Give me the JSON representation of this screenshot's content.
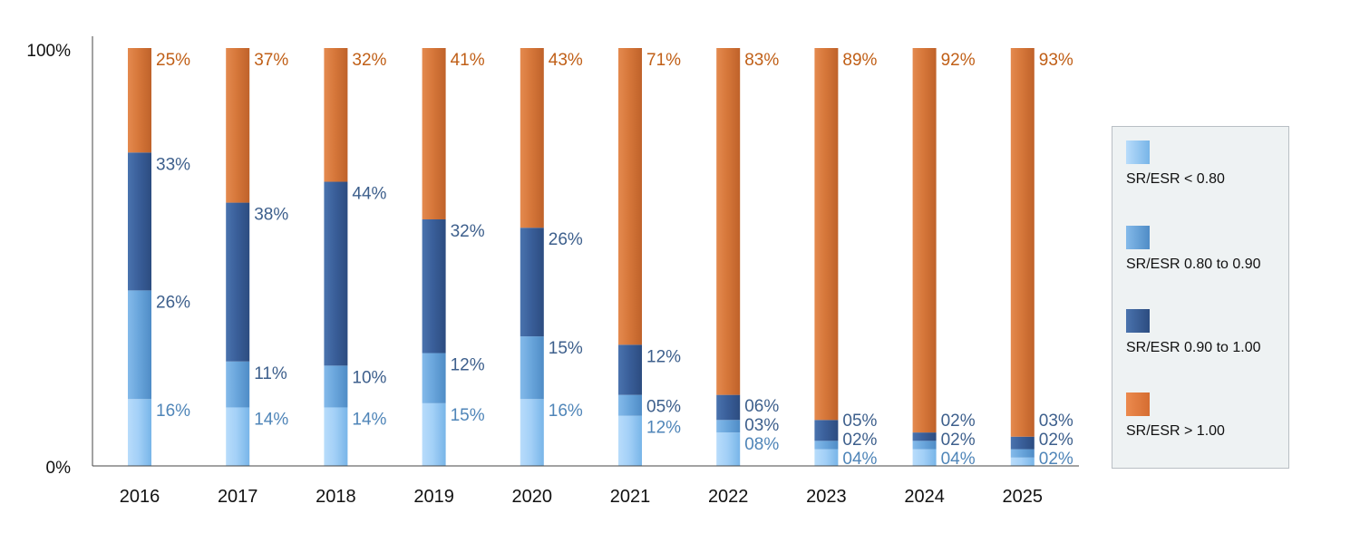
{
  "chart_data": {
    "type": "bar",
    "stacked": true,
    "title": "",
    "xlabel": "",
    "ylabel": "",
    "ylim": [
      0,
      100
    ],
    "yticks": [
      "0%",
      "100%"
    ],
    "categories": [
      "2016",
      "2017",
      "2018",
      "2019",
      "2020",
      "2021",
      "2022",
      "2023",
      "2024",
      "2025"
    ],
    "series": [
      {
        "name": "SR/ESR < 0.80",
        "color": "#9fcdf5",
        "values": [
          16,
          14,
          14,
          15,
          16,
          12,
          8,
          4,
          4,
          2
        ],
        "labels": [
          "16%",
          "14%",
          "14%",
          "15%",
          "16%",
          "12%",
          "08%",
          "04%",
          "04%",
          "02%"
        ]
      },
      {
        "name": "SR/ESR 0.80 to 0.90",
        "color": "#6aa7dc",
        "values": [
          26,
          11,
          10,
          12,
          15,
          5,
          3,
          2,
          2,
          2
        ],
        "labels": [
          "26%",
          "11%",
          "10%",
          "12%",
          "15%",
          "05%",
          "03%",
          "02%",
          "02%",
          "02%"
        ]
      },
      {
        "name": "SR/ESR 0.90 to 1.00",
        "color": "#3a5f9a",
        "values": [
          33,
          38,
          44,
          32,
          26,
          12,
          6,
          5,
          2,
          3
        ],
        "labels": [
          "33%",
          "38%",
          "44%",
          "32%",
          "26%",
          "12%",
          "06%",
          "05%",
          "02%",
          "03%"
        ]
      },
      {
        "name": "SR/ESR > 1.00",
        "color": "#d97a3e",
        "values": [
          25,
          37,
          32,
          41,
          43,
          71,
          83,
          89,
          92,
          93
        ],
        "labels": [
          "25%",
          "37%",
          "32%",
          "41%",
          "43%",
          "71%",
          "83%",
          "89%",
          "92%",
          "93%"
        ]
      }
    ],
    "legend_position": "right",
    "grid": false
  }
}
